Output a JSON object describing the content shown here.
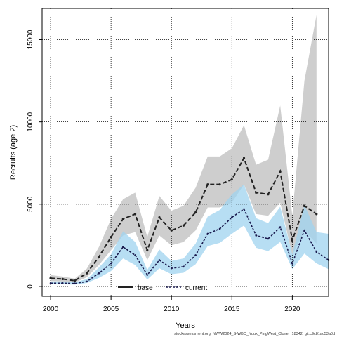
{
  "chart_data": {
    "type": "line",
    "xlabel": "Years",
    "ylabel": "Recruits (age 2)",
    "xlim": [
      1999.3,
      2023.0
    ],
    "ylim": [
      -600,
      16900
    ],
    "grid": true,
    "legend_position": "bottom-center",
    "x": [
      2000,
      2001,
      2002,
      2003,
      2004,
      2005,
      2006,
      2007,
      2008,
      2009,
      2010,
      2011,
      2012,
      2013,
      2014,
      2015,
      2016,
      2017,
      2018,
      2019,
      2020,
      2021,
      2022,
      2023
    ],
    "x_ticks": [
      2000,
      2005,
      2010,
      2015,
      2020
    ],
    "y_ticks": [
      0,
      5000,
      10000,
      15000
    ],
    "series": [
      {
        "name": "base",
        "color": "#222222",
        "band_color": "#bdbdbd",
        "x": [
          2000,
          2001,
          2002,
          2003,
          2004,
          2005,
          2006,
          2007,
          2008,
          2009,
          2010,
          2011,
          2012,
          2013,
          2014,
          2015,
          2016,
          2017,
          2018,
          2019,
          2020,
          2021,
          2022
        ],
        "values": [
          500,
          450,
          350,
          800,
          1800,
          3000,
          4100,
          4400,
          2200,
          4200,
          3400,
          3700,
          4500,
          6200,
          6200,
          6500,
          7800,
          5700,
          5600,
          7000,
          2800,
          4900,
          4400
        ],
        "lower": [
          330,
          300,
          240,
          560,
          1300,
          2200,
          3100,
          3300,
          1600,
          3100,
          2500,
          2700,
          3400,
          4800,
          4800,
          5100,
          6200,
          4400,
          4300,
          5100,
          1900,
          3400,
          2600
        ],
        "upper": [
          690,
          600,
          470,
          1080,
          2400,
          4100,
          5300,
          5700,
          3000,
          5500,
          4600,
          4900,
          6000,
          7900,
          7900,
          8400,
          9800,
          7400,
          7700,
          11000,
          4300,
          12500,
          16500
        ]
      },
      {
        "name": "current",
        "color": "#1a1a4e",
        "band_color": "#9fd3ef",
        "x": [
          2000,
          2001,
          2002,
          2003,
          2004,
          2005,
          2006,
          2007,
          2008,
          2009,
          2010,
          2011,
          2012,
          2013,
          2014,
          2015,
          2016,
          2017,
          2018,
          2019,
          2020,
          2021,
          2022,
          2023
        ],
        "values": [
          200,
          200,
          180,
          300,
          800,
          1400,
          2400,
          1900,
          700,
          1600,
          1100,
          1200,
          1900,
          3200,
          3500,
          4200,
          4700,
          3100,
          2900,
          3600,
          1400,
          3400,
          2100,
          1600
        ],
        "lower": [
          130,
          130,
          110,
          210,
          520,
          930,
          1700,
          1300,
          420,
          1100,
          740,
          830,
          1350,
          2450,
          2650,
          3200,
          3700,
          2350,
          2150,
          2700,
          1050,
          2000,
          1400,
          1050
        ],
        "upper": [
          300,
          300,
          260,
          440,
          1150,
          1950,
          3350,
          2700,
          1000,
          2250,
          1550,
          1700,
          2600,
          4250,
          4650,
          5600,
          6200,
          4150,
          3850,
          4850,
          1950,
          4950,
          3300,
          3200
        ]
      }
    ]
  },
  "footer": "stockassessment.org, NWW2024_S-WBC_Nuuk_PingWest_Clone, r18342, git:c9c81ac53a0d"
}
